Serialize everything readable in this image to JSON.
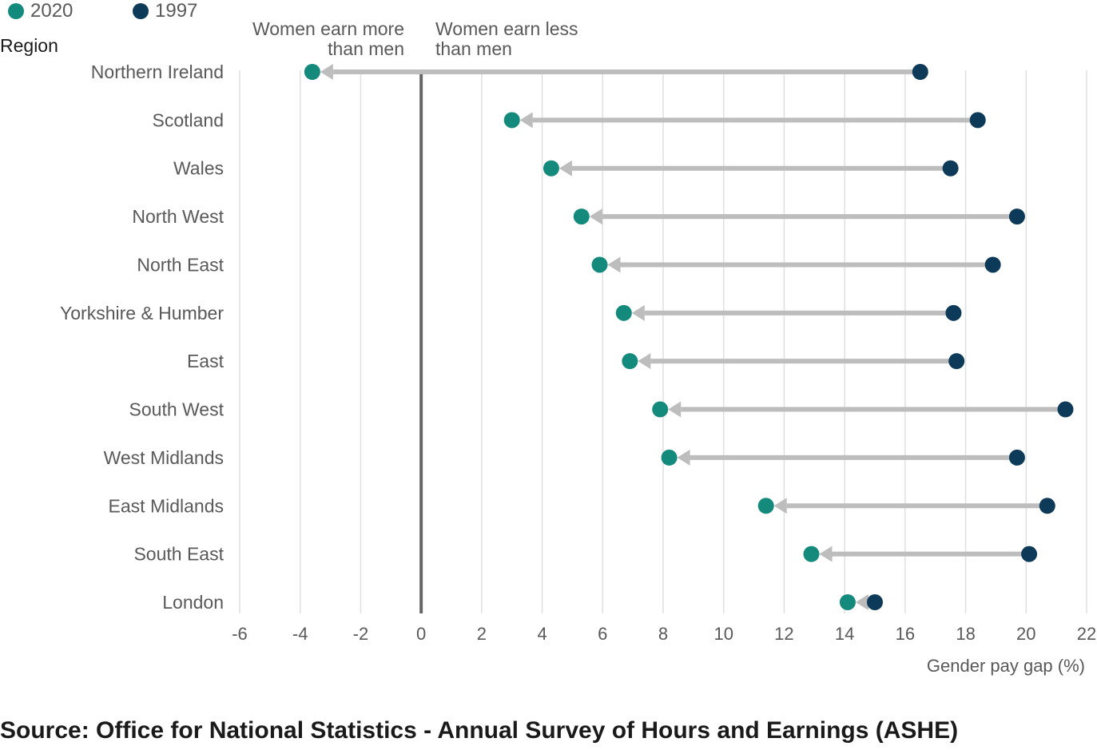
{
  "chart_data": {
    "type": "dumbbell",
    "legend_position": "top-left",
    "series": [
      {
        "name": "2020",
        "color": "#138a7b"
      },
      {
        "name": "1997",
        "color": "#0e3a5a"
      }
    ],
    "annotations": {
      "left": [
        "Women earn more",
        "than men"
      ],
      "right": [
        "Women earn less",
        "than men"
      ]
    },
    "ylabel": "Region",
    "xlabel": "Gender pay gap (%)",
    "xlim": [
      -6,
      22
    ],
    "xticks": [
      -6,
      -4,
      -2,
      0,
      2,
      4,
      6,
      8,
      10,
      12,
      14,
      16,
      18,
      20,
      22
    ],
    "grid": "vertical",
    "categories": [
      "Northern Ireland",
      "Scotland",
      "Wales",
      "North West",
      "North East",
      "Yorkshire & Humber",
      "East",
      "South West",
      "West Midlands",
      "East Midlands",
      "South East",
      "London"
    ],
    "values_1997": [
      16.5,
      18.4,
      17.5,
      19.7,
      18.9,
      17.6,
      17.7,
      21.3,
      19.7,
      20.7,
      20.1,
      15.0
    ],
    "values_2020": [
      -3.6,
      3.0,
      4.3,
      5.3,
      5.9,
      6.7,
      6.9,
      7.9,
      8.2,
      11.4,
      12.9,
      14.1
    ]
  },
  "source": "Source: Office for National Statistics - Annual Survey of Hours and Earnings (ASHE)",
  "colors": {
    "connector": "#bdbdbd",
    "zero_line": "#666666",
    "gridline": "#e0e0e0"
  }
}
